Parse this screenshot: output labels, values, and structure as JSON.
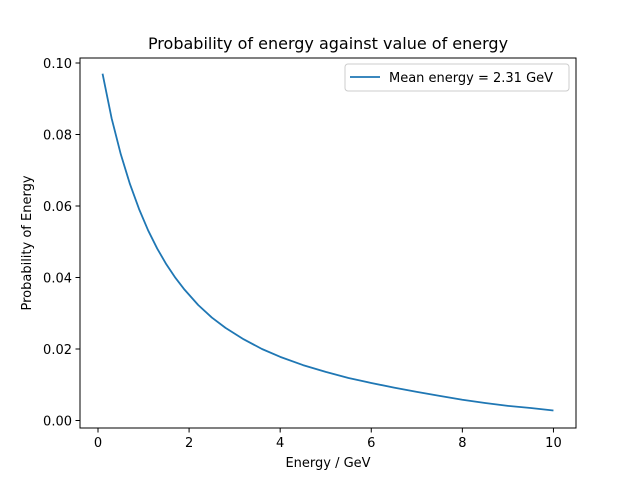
{
  "chart_data": {
    "type": "line",
    "title": "Probability of energy against value of energy",
    "xlabel": "Energy / GeV",
    "ylabel": "Probability of Energy",
    "xlim": [
      -0.395,
      10.495
    ],
    "ylim": [
      -0.0021,
      0.1014
    ],
    "xticks": [
      0,
      2,
      4,
      6,
      8,
      10
    ],
    "xtick_labels": [
      "0",
      "2",
      "4",
      "6",
      "8",
      "10"
    ],
    "yticks": [
      0.0,
      0.02,
      0.04,
      0.06,
      0.08,
      0.1
    ],
    "ytick_labels": [
      "0.00",
      "0.02",
      "0.04",
      "0.06",
      "0.08",
      "0.10"
    ],
    "grid": false,
    "legend_position": "upper-right",
    "series": [
      {
        "name": "Mean energy = 2.31 GeV",
        "color": "#1f77b4",
        "x": [
          0.1,
          0.3,
          0.5,
          0.7,
          0.9,
          1.1,
          1.3,
          1.5,
          1.7,
          1.9,
          2.2,
          2.5,
          2.8,
          3.2,
          3.6,
          4.0,
          4.5,
          5.0,
          5.5,
          6.0,
          6.5,
          7.0,
          7.5,
          8.0,
          8.5,
          9.0,
          9.5,
          10.0
        ],
        "y": [
          0.097,
          0.0845,
          0.0745,
          0.0662,
          0.0592,
          0.0532,
          0.0481,
          0.0437,
          0.0399,
          0.0366,
          0.0323,
          0.0288,
          0.0259,
          0.0227,
          0.02,
          0.0178,
          0.0155,
          0.0136,
          0.0119,
          0.0105,
          0.0092,
          0.008,
          0.0069,
          0.0058,
          0.0049,
          0.0041,
          0.0035,
          0.0028
        ]
      }
    ]
  }
}
